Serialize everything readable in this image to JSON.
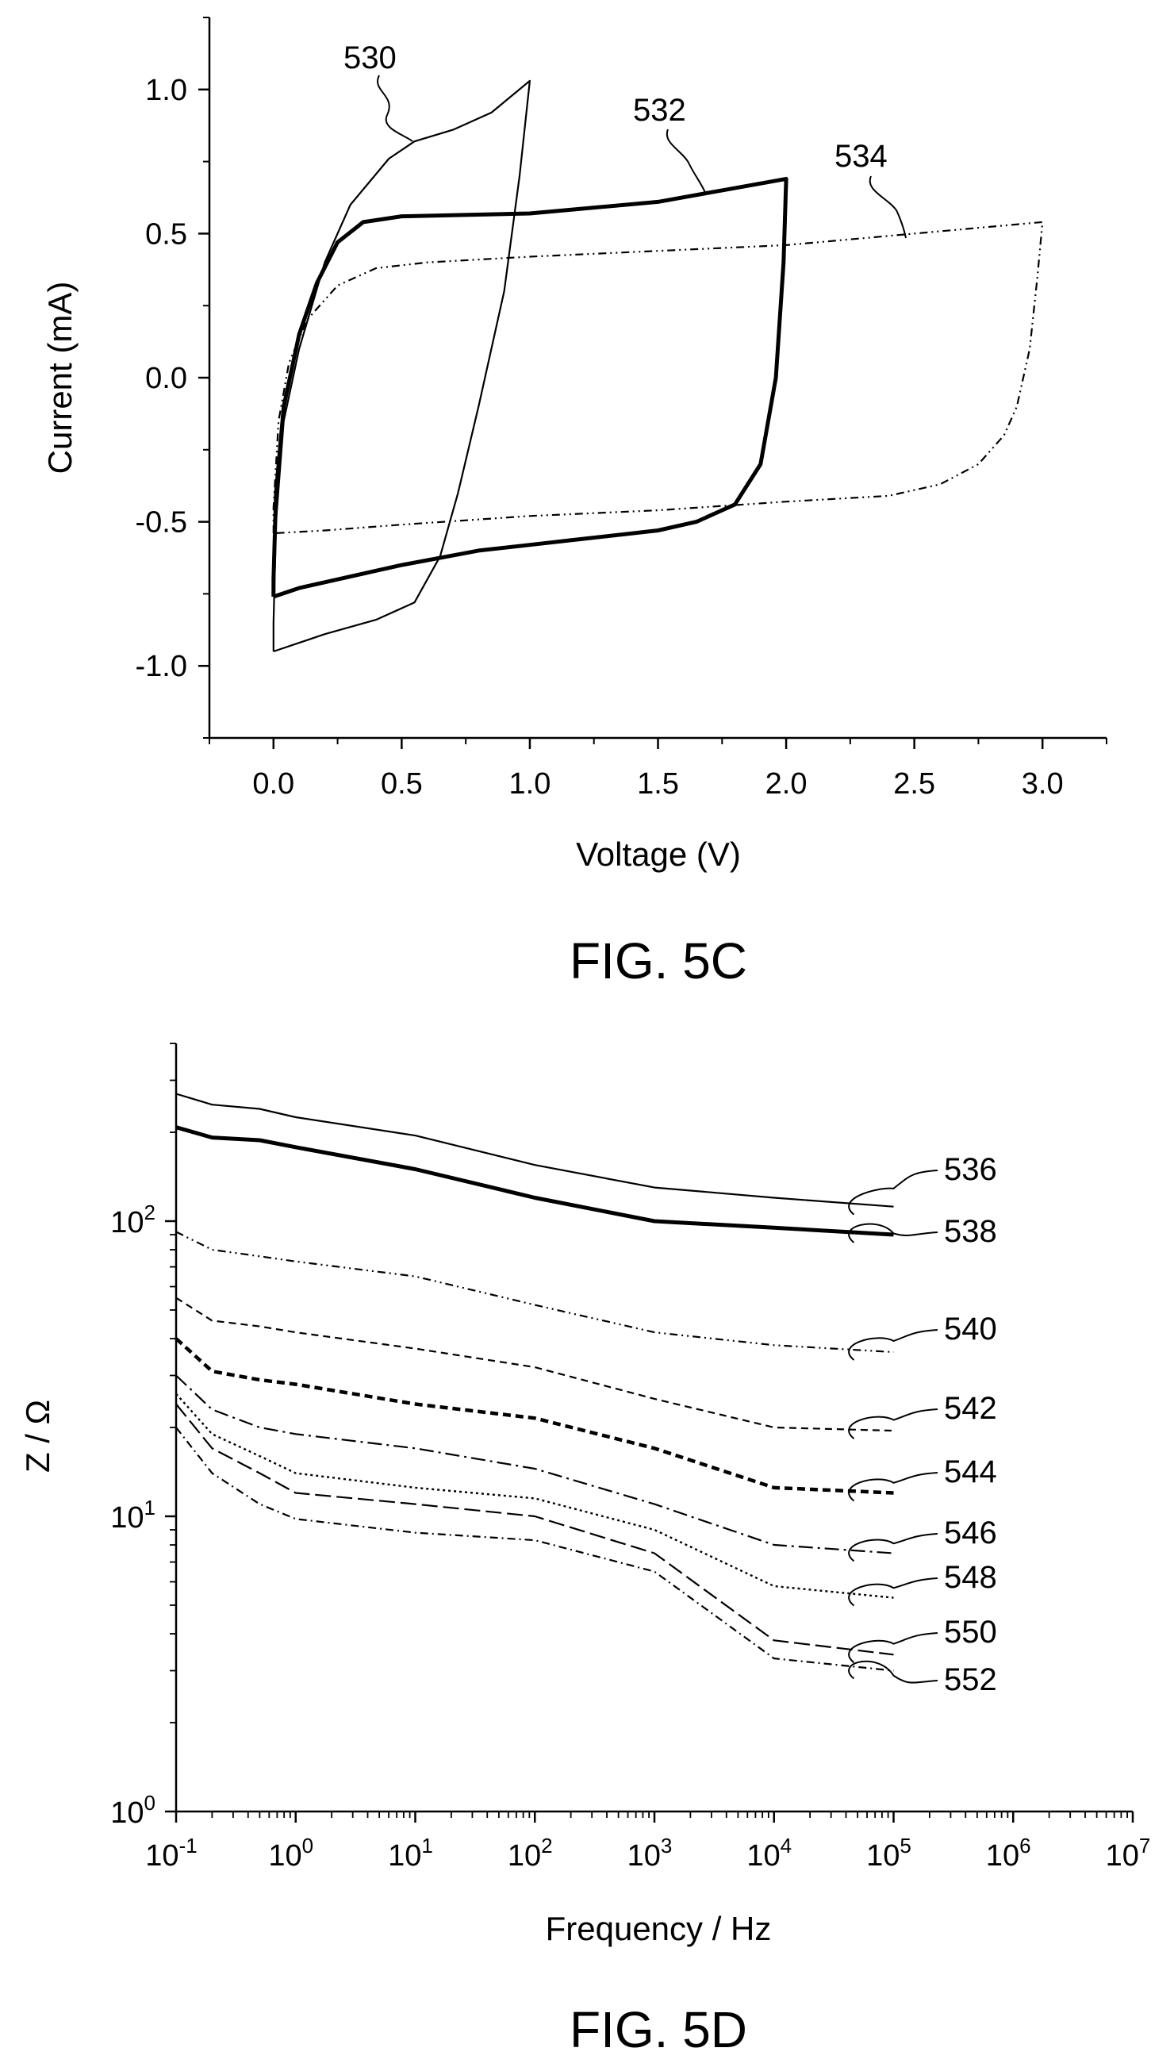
{
  "chart_data": [
    {
      "type": "line",
      "caption": "FIG. 5C",
      "xlabel": "Voltage (V)",
      "ylabel": "Current (mA)",
      "xlim": [
        -0.25,
        3.25
      ],
      "ylim": [
        -1.25,
        1.25
      ],
      "x_ticks": [
        0.0,
        0.5,
        1.0,
        1.5,
        2.0,
        2.5,
        3.0
      ],
      "x_tick_labels": [
        "0.0",
        "0.5",
        "1.0",
        "1.5",
        "2.0",
        "2.5",
        "3.0"
      ],
      "y_ticks": [
        -1.0,
        -0.5,
        0.0,
        0.5,
        1.0
      ],
      "y_tick_labels": [
        "-1.0",
        "-0.5",
        "0.0",
        "0.5",
        "1.0"
      ],
      "series": [
        {
          "name": "530",
          "style": "thin-solid",
          "points": [
            [
              0.0,
              -0.95
            ],
            [
              0.0,
              -0.85
            ],
            [
              0.01,
              -0.5
            ],
            [
              0.04,
              -0.15
            ],
            [
              0.1,
              0.1
            ],
            [
              0.2,
              0.4
            ],
            [
              0.3,
              0.6
            ],
            [
              0.45,
              0.76
            ],
            [
              0.55,
              0.82
            ],
            [
              0.7,
              0.86
            ],
            [
              0.85,
              0.92
            ],
            [
              1.0,
              1.03
            ],
            [
              0.96,
              0.7
            ],
            [
              0.9,
              0.3
            ],
            [
              0.8,
              -0.1
            ],
            [
              0.72,
              -0.4
            ],
            [
              0.65,
              -0.62
            ],
            [
              0.55,
              -0.78
            ],
            [
              0.4,
              -0.84
            ],
            [
              0.2,
              -0.89
            ],
            [
              0.0,
              -0.95
            ]
          ]
        },
        {
          "name": "532",
          "style": "thick-solid",
          "points": [
            [
              0.0,
              -0.76
            ],
            [
              0.0,
              -0.7
            ],
            [
              0.01,
              -0.4
            ],
            [
              0.04,
              -0.1
            ],
            [
              0.1,
              0.15
            ],
            [
              0.17,
              0.33
            ],
            [
              0.25,
              0.47
            ],
            [
              0.35,
              0.54
            ],
            [
              0.5,
              0.56
            ],
            [
              1.0,
              0.57
            ],
            [
              1.5,
              0.61
            ],
            [
              1.75,
              0.65
            ],
            [
              2.0,
              0.69
            ],
            [
              1.99,
              0.4
            ],
            [
              1.96,
              0.0
            ],
            [
              1.9,
              -0.3
            ],
            [
              1.8,
              -0.44
            ],
            [
              1.65,
              -0.5
            ],
            [
              1.5,
              -0.53
            ],
            [
              1.2,
              -0.56
            ],
            [
              1.0,
              -0.58
            ],
            [
              0.8,
              -0.6
            ],
            [
              0.5,
              -0.65
            ],
            [
              0.3,
              -0.69
            ],
            [
              0.1,
              -0.73
            ],
            [
              0.0,
              -0.76
            ]
          ]
        },
        {
          "name": "534",
          "style": "dash-dot-dot",
          "points": [
            [
              0.0,
              -0.54
            ],
            [
              0.0,
              -0.45
            ],
            [
              0.02,
              -0.15
            ],
            [
              0.06,
              0.05
            ],
            [
              0.13,
              0.2
            ],
            [
              0.25,
              0.32
            ],
            [
              0.4,
              0.38
            ],
            [
              0.6,
              0.4
            ],
            [
              1.0,
              0.42
            ],
            [
              1.5,
              0.44
            ],
            [
              2.0,
              0.46
            ],
            [
              2.5,
              0.5
            ],
            [
              3.0,
              0.54
            ],
            [
              2.98,
              0.35
            ],
            [
              2.95,
              0.1
            ],
            [
              2.9,
              -0.1
            ],
            [
              2.85,
              -0.2
            ],
            [
              2.75,
              -0.3
            ],
            [
              2.6,
              -0.37
            ],
            [
              2.4,
              -0.41
            ],
            [
              2.0,
              -0.43
            ],
            [
              1.5,
              -0.46
            ],
            [
              1.0,
              -0.48
            ],
            [
              0.5,
              -0.51
            ],
            [
              0.2,
              -0.53
            ],
            [
              0.0,
              -0.54
            ]
          ]
        }
      ],
      "callouts": [
        "530",
        "532",
        "534"
      ]
    },
    {
      "type": "line",
      "caption": "FIG. 5D",
      "xlabel": "Frequency / Hz",
      "ylabel": "Z / Ω",
      "xscale": "log",
      "yscale": "log",
      "xlim": [
        0.1,
        10000000
      ],
      "ylim": [
        1,
        400
      ],
      "x_ticks": [
        0.1,
        1,
        10,
        100,
        1000,
        10000,
        100000,
        1000000,
        10000000
      ],
      "x_tick_labels": [
        [
          "10",
          "-1"
        ],
        [
          "10",
          "0"
        ],
        [
          "10",
          "1"
        ],
        [
          "10",
          "2"
        ],
        [
          "10",
          "3"
        ],
        [
          "10",
          "4"
        ],
        [
          "10",
          "5"
        ],
        [
          "10",
          "6"
        ],
        [
          "10",
          "7"
        ]
      ],
      "y_ticks": [
        1,
        10,
        100
      ],
      "y_tick_labels": [
        [
          "10",
          "0"
        ],
        [
          "10",
          "1"
        ],
        [
          "10",
          "2"
        ]
      ],
      "series": [
        {
          "name": "536",
          "style": "thin-solid",
          "points": [
            [
              0.1,
              270
            ],
            [
              0.2,
              248
            ],
            [
              0.5,
              240
            ],
            [
              1,
              225
            ],
            [
              10,
              195
            ],
            [
              100,
              155
            ],
            [
              1000,
              130
            ],
            [
              10000,
              120
            ],
            [
              100000,
              112
            ]
          ]
        },
        {
          "name": "538",
          "style": "thick-solid",
          "points": [
            [
              0.1,
              208
            ],
            [
              0.2,
              192
            ],
            [
              0.5,
              188
            ],
            [
              1,
              178
            ],
            [
              10,
              150
            ],
            [
              100,
              120
            ],
            [
              1000,
              100
            ],
            [
              10000,
              95
            ],
            [
              100000,
              90
            ]
          ]
        },
        {
          "name": "540",
          "style": "dash-dot-dot",
          "points": [
            [
              0.1,
              92
            ],
            [
              0.2,
              80
            ],
            [
              0.5,
              76
            ],
            [
              1,
              73
            ],
            [
              10,
              65
            ],
            [
              100,
              52
            ],
            [
              1000,
              42
            ],
            [
              10000,
              38
            ],
            [
              100000,
              36
            ]
          ]
        },
        {
          "name": "542",
          "style": "dashed",
          "points": [
            [
              0.1,
              55
            ],
            [
              0.2,
              46
            ],
            [
              0.5,
              44
            ],
            [
              1,
              42
            ],
            [
              10,
              37
            ],
            [
              100,
              32
            ],
            [
              1000,
              25
            ],
            [
              10000,
              20
            ],
            [
              100000,
              19.5
            ]
          ]
        },
        {
          "name": "544",
          "style": "thick-dashed",
          "points": [
            [
              0.1,
              40
            ],
            [
              0.2,
              31
            ],
            [
              0.5,
              29
            ],
            [
              1,
              28
            ],
            [
              10,
              24
            ],
            [
              100,
              21.5
            ],
            [
              1000,
              17
            ],
            [
              10000,
              12.5
            ],
            [
              100000,
              12
            ]
          ]
        },
        {
          "name": "546",
          "style": "long-dash-dot",
          "points": [
            [
              0.1,
              30
            ],
            [
              0.2,
              23
            ],
            [
              0.5,
              20
            ],
            [
              1,
              19
            ],
            [
              10,
              17
            ],
            [
              100,
              14.5
            ],
            [
              1000,
              11
            ],
            [
              10000,
              8
            ],
            [
              100000,
              7.5
            ]
          ]
        },
        {
          "name": "548",
          "style": "dotted",
          "points": [
            [
              0.1,
              26
            ],
            [
              0.2,
              19
            ],
            [
              0.5,
              16
            ],
            [
              1,
              14
            ],
            [
              10,
              12.5
            ],
            [
              100,
              11.5
            ],
            [
              1000,
              9
            ],
            [
              10000,
              5.8
            ],
            [
              100000,
              5.3
            ]
          ]
        },
        {
          "name": "550",
          "style": "long-dash",
          "points": [
            [
              0.1,
              24
            ],
            [
              0.2,
              17
            ],
            [
              0.5,
              14
            ],
            [
              1,
              12
            ],
            [
              10,
              11
            ],
            [
              100,
              10
            ],
            [
              1000,
              7.5
            ],
            [
              10000,
              3.8
            ],
            [
              100000,
              3.4
            ]
          ]
        },
        {
          "name": "552",
          "style": "dash-dot",
          "points": [
            [
              0.1,
              20
            ],
            [
              0.2,
              14
            ],
            [
              0.5,
              11
            ],
            [
              1,
              9.8
            ],
            [
              10,
              8.8
            ],
            [
              100,
              8.3
            ],
            [
              1000,
              6.5
            ],
            [
              10000,
              3.3
            ],
            [
              100000,
              3.0
            ]
          ]
        }
      ],
      "callouts": [
        "536",
        "538",
        "540",
        "542",
        "544",
        "546",
        "548",
        "550",
        "552"
      ]
    }
  ]
}
